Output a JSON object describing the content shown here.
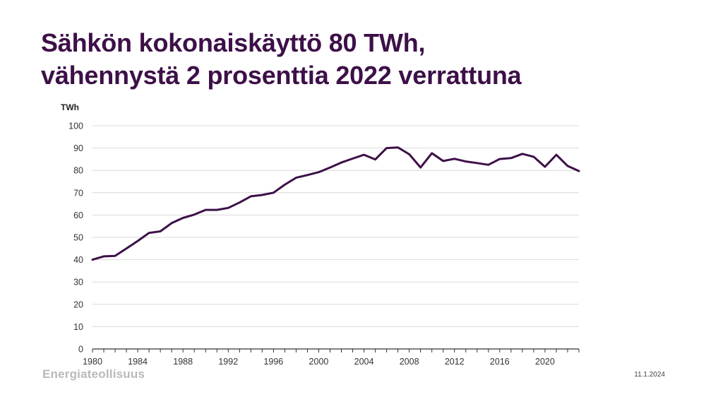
{
  "slide": {
    "title_line1": "Sähkön kokonaiskäyttö 80 TWh,",
    "title_line2": "vähennystä 2 prosenttia 2022 verrattuna",
    "brand": "Energiateollisuus",
    "date": "11.1.2024"
  },
  "colors": {
    "title": "#3d1048",
    "line": "#3d1048",
    "grid": "#d9d9d9",
    "axis": "#333333"
  },
  "chart_data": {
    "type": "line",
    "title": "",
    "xlabel": "",
    "ylabel": "TWh",
    "ylim": [
      0,
      100
    ],
    "xlim": [
      1980,
      2023
    ],
    "y_ticks": [
      0,
      10,
      20,
      30,
      40,
      50,
      60,
      70,
      80,
      90,
      100
    ],
    "x_ticks": [
      1980,
      1984,
      1988,
      1992,
      1996,
      2000,
      2004,
      2008,
      2012,
      2016,
      2020
    ],
    "grid": true,
    "legend": "none",
    "series": [
      {
        "x": [
          1980,
          1981,
          1982,
          1983,
          1984,
          1985,
          1986,
          1987,
          1988,
          1989,
          1990,
          1991,
          1992,
          1993,
          1994,
          1995,
          1996,
          1997,
          1998,
          1999,
          2000,
          2001,
          2002,
          2003,
          2004,
          2005,
          2006,
          2007,
          2008,
          2009,
          2010,
          2011,
          2012,
          2013,
          2014,
          2015,
          2016,
          2017,
          2018,
          2019,
          2020,
          2021,
          2022,
          2023
        ],
        "values": [
          40,
          41.5,
          41.7,
          45,
          48.4,
          52,
          52.7,
          56.4,
          58.7,
          60.2,
          62.3,
          62.3,
          63.2,
          65.6,
          68.4,
          69,
          70,
          73.6,
          76.7,
          77.9,
          79.2,
          81.3,
          83.5,
          85.3,
          87,
          84.9,
          90,
          90.3,
          87.2,
          81.3,
          87.7,
          84.2,
          85.2,
          84,
          83.3,
          82.5,
          85.1,
          85.5,
          87.4,
          86.1,
          81.6,
          87,
          82,
          79.7
        ]
      }
    ]
  }
}
